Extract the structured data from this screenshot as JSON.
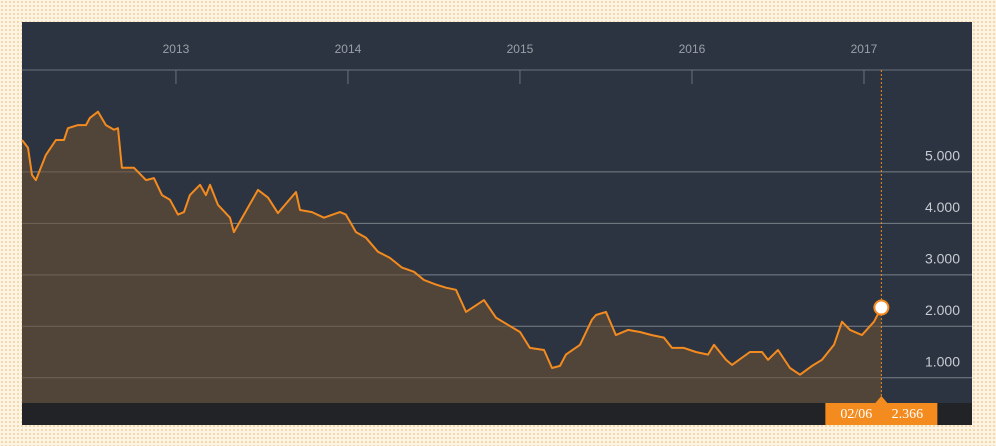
{
  "chart_data": {
    "type": "area-line",
    "x": [
      2012.105,
      2012.14,
      2012.163,
      2012.186,
      2012.244,
      2012.302,
      2012.349,
      2012.372,
      2012.43,
      2012.477,
      2012.5,
      2012.547,
      2012.593,
      2012.64,
      2012.663,
      2012.686,
      2012.756,
      2012.826,
      2012.872,
      2012.919,
      2012.965,
      2013.012,
      2013.047,
      2013.081,
      2013.14,
      2013.174,
      2013.198,
      2013.244,
      2013.314,
      2013.337,
      2013.395,
      2013.477,
      2013.535,
      2013.593,
      2013.698,
      2013.721,
      2013.791,
      2013.86,
      2013.953,
      2013.988,
      2014.047,
      2014.105,
      2014.174,
      2014.244,
      2014.314,
      2014.384,
      2014.442,
      2014.512,
      2014.57,
      2014.628,
      2014.686,
      2014.791,
      2014.86,
      2014.93,
      2015.0,
      2015.058,
      2015.14,
      2015.186,
      2015.233,
      2015.267,
      2015.349,
      2015.419,
      2015.442,
      2015.5,
      2015.558,
      2015.628,
      2015.698,
      2015.767,
      2015.837,
      2015.884,
      2015.953,
      2016.023,
      2016.093,
      2016.128,
      2016.198,
      2016.233,
      2016.337,
      2016.407,
      2016.442,
      2016.5,
      2016.57,
      2016.628,
      2016.698,
      2016.756,
      2016.826,
      2016.872,
      2016.919,
      2016.988,
      2017.058,
      2017.101
    ],
    "values": [
      5.62,
      5.47,
      4.94,
      4.84,
      5.33,
      5.62,
      5.62,
      5.85,
      5.91,
      5.91,
      6.05,
      6.17,
      5.91,
      5.82,
      5.85,
      5.08,
      5.08,
      4.84,
      4.88,
      4.55,
      4.46,
      4.17,
      4.22,
      4.55,
      4.75,
      4.55,
      4.75,
      4.36,
      4.11,
      3.83,
      4.17,
      4.65,
      4.5,
      4.2,
      4.61,
      4.26,
      4.22,
      4.11,
      4.22,
      4.17,
      3.83,
      3.72,
      3.45,
      3.33,
      3.14,
      3.06,
      2.9,
      2.81,
      2.75,
      2.71,
      2.28,
      2.51,
      2.17,
      2.03,
      1.89,
      1.58,
      1.54,
      1.19,
      1.23,
      1.45,
      1.64,
      2.13,
      2.22,
      2.28,
      1.83,
      1.93,
      1.89,
      1.83,
      1.78,
      1.58,
      1.58,
      1.5,
      1.45,
      1.64,
      1.35,
      1.25,
      1.5,
      1.5,
      1.35,
      1.54,
      1.19,
      1.06,
      1.23,
      1.35,
      1.64,
      2.09,
      1.93,
      1.83,
      2.09,
      2.366
    ],
    "color": "#f48b1f",
    "xlim": [
      2012.105,
      2017.628
    ],
    "xticks": [
      2013,
      2014,
      2015,
      2016,
      2017
    ],
    "ylim": [
      0.51,
      6.98
    ],
    "yticks": [
      {
        "value": 1,
        "label": "1.000"
      },
      {
        "value": 2,
        "label": "2.000"
      },
      {
        "value": 3,
        "label": "3.000"
      },
      {
        "value": 4,
        "label": "4.000"
      },
      {
        "value": 5,
        "label": "5.000"
      }
    ],
    "grid": true,
    "last_point": {
      "x_label": "02/06",
      "value_label": "2.366"
    }
  }
}
